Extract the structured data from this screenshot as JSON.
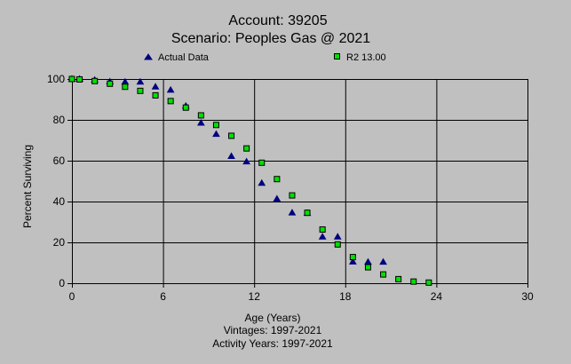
{
  "chart_data": {
    "type": "scatter",
    "title": "Account: 39205",
    "subtitle": "Scenario: Peoples Gas @ 2021",
    "xlabel": "Age (Years)",
    "ylabel": "Percent Surviving",
    "footer_lines": [
      "Vintages: 1997-2021",
      "Activity Years: 1997-2021"
    ],
    "xlim": [
      0,
      30
    ],
    "ylim": [
      0,
      100
    ],
    "xticks": [
      0,
      6,
      12,
      18,
      24,
      30
    ],
    "yticks": [
      0,
      20,
      40,
      60,
      80,
      100
    ],
    "grid": true,
    "legend_position": "top",
    "series": [
      {
        "name": "Actual Data",
        "marker": "triangle",
        "color": "#000080",
        "points": [
          {
            "x": 0,
            "y": 100
          },
          {
            "x": 0.5,
            "y": 100
          },
          {
            "x": 1.5,
            "y": 99.5
          },
          {
            "x": 2.5,
            "y": 98.7
          },
          {
            "x": 3.5,
            "y": 98.6
          },
          {
            "x": 4.5,
            "y": 98.6
          },
          {
            "x": 5.5,
            "y": 96.2
          },
          {
            "x": 6.5,
            "y": 94.6
          },
          {
            "x": 7.5,
            "y": 86.8
          },
          {
            "x": 8.5,
            "y": 78.5
          },
          {
            "x": 9.5,
            "y": 73.0
          },
          {
            "x": 10.5,
            "y": 62.2
          },
          {
            "x": 11.5,
            "y": 59.5
          },
          {
            "x": 12.5,
            "y": 49.0
          },
          {
            "x": 13.5,
            "y": 41.3
          },
          {
            "x": 14.5,
            "y": 34.5
          },
          {
            "x": 15.5,
            "y": 34.3
          },
          {
            "x": 16.5,
            "y": 22.7
          },
          {
            "x": 17.5,
            "y": 22.7
          },
          {
            "x": 18.5,
            "y": 10.5
          },
          {
            "x": 19.5,
            "y": 10.4
          },
          {
            "x": 20.5,
            "y": 10.4
          }
        ]
      },
      {
        "name": "R2 13.00",
        "marker": "square",
        "color": "#00e000",
        "points": [
          {
            "x": 0,
            "y": 100
          },
          {
            "x": 0.5,
            "y": 99.8
          },
          {
            "x": 1.5,
            "y": 99.0
          },
          {
            "x": 2.5,
            "y": 97.7
          },
          {
            "x": 3.5,
            "y": 96.2
          },
          {
            "x": 4.5,
            "y": 94.2
          },
          {
            "x": 5.5,
            "y": 92.0
          },
          {
            "x": 6.5,
            "y": 89.2
          },
          {
            "x": 7.5,
            "y": 86.0
          },
          {
            "x": 8.5,
            "y": 82.2
          },
          {
            "x": 9.5,
            "y": 77.5
          },
          {
            "x": 10.5,
            "y": 72.2
          },
          {
            "x": 11.5,
            "y": 66.0
          },
          {
            "x": 12.5,
            "y": 59.0
          },
          {
            "x": 13.5,
            "y": 51.0
          },
          {
            "x": 14.5,
            "y": 43.0
          },
          {
            "x": 15.5,
            "y": 34.5
          },
          {
            "x": 16.5,
            "y": 26.3
          },
          {
            "x": 17.5,
            "y": 19.0
          },
          {
            "x": 18.5,
            "y": 12.8
          },
          {
            "x": 19.5,
            "y": 7.8
          },
          {
            "x": 20.5,
            "y": 4.3
          },
          {
            "x": 21.5,
            "y": 2.0
          },
          {
            "x": 22.5,
            "y": 0.8
          },
          {
            "x": 23.5,
            "y": 0.3
          }
        ]
      }
    ]
  },
  "colors": {
    "background": "#c0c0c0",
    "grid": "#000000",
    "plot_border": "#000000"
  }
}
